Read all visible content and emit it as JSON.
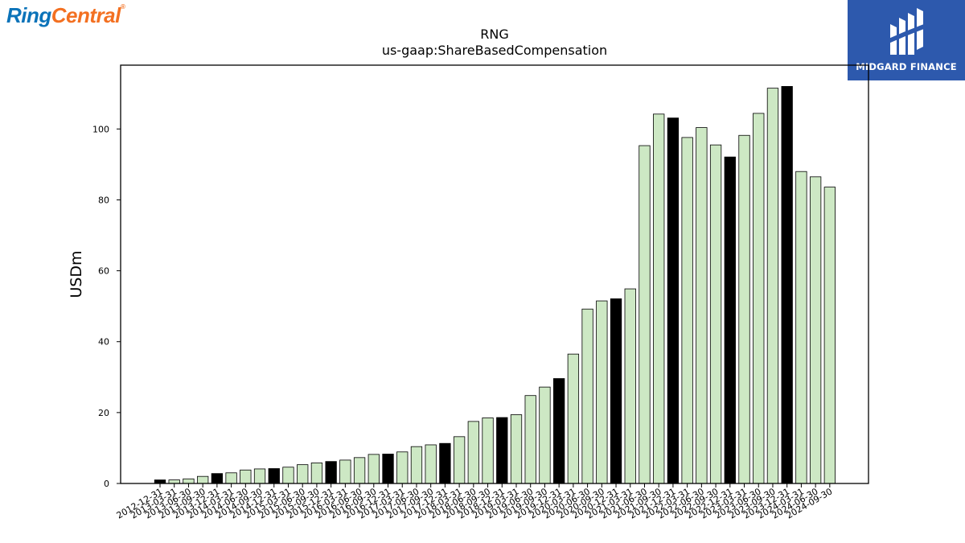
{
  "brand": {
    "left_part1": "Ring",
    "left_part2": "Central",
    "left_reg": "®",
    "right_text": "MIDGARD FINANCE",
    "right_bg": "#2d59ad"
  },
  "colors": {
    "quarter_fill": "#cde8c4",
    "annual_fill": "#000000",
    "edge": "#000000"
  },
  "chart_data": {
    "type": "bar",
    "title": "RNG",
    "subtitle": "us-gaap:ShareBasedCompensation",
    "xlabel": "",
    "ylabel": "USDm",
    "ylim": [
      0,
      118
    ],
    "yticks": [
      0,
      20,
      40,
      60,
      80,
      100
    ],
    "grid": false,
    "categories": [
      "2012-12-31",
      "2013-03-31",
      "2013-06-30",
      "2013-09-30",
      "2013-12-31",
      "2014-03-31",
      "2014-06-30",
      "2014-09-30",
      "2014-12-31",
      "2015-03-31",
      "2015-06-30",
      "2015-09-30",
      "2015-12-31",
      "2016-03-31",
      "2016-06-30",
      "2016-09-30",
      "2016-12-31",
      "2017-03-31",
      "2017-06-30",
      "2017-09-30",
      "2017-12-31",
      "2018-03-31",
      "2018-06-30",
      "2018-09-30",
      "2018-12-31",
      "2019-03-31",
      "2019-06-30",
      "2019-09-30",
      "2019-12-31",
      "2020-03-31",
      "2020-06-30",
      "2020-09-30",
      "2020-12-31",
      "2021-03-31",
      "2021-06-30",
      "2021-09-30",
      "2021-12-31",
      "2022-03-31",
      "2022-06-30",
      "2022-09-30",
      "2022-12-31",
      "2023-03-31",
      "2023-06-30",
      "2023-09-30",
      "2023-12-31",
      "2024-03-31",
      "2024-06-30",
      "2024-09-30"
    ],
    "values": [
      1.0,
      1.0,
      1.3,
      2.0,
      2.8,
      3.0,
      3.8,
      4.1,
      4.2,
      4.6,
      5.3,
      5.8,
      6.2,
      6.6,
      7.3,
      8.2,
      8.3,
      8.9,
      10.4,
      10.9,
      11.3,
      13.2,
      17.5,
      18.5,
      18.6,
      19.4,
      24.8,
      27.2,
      29.6,
      36.5,
      49.2,
      51.5,
      52.1,
      54.9,
      95.3,
      104.2,
      103.1,
      97.6,
      100.4,
      95.5,
      92.1,
      98.2,
      104.4,
      111.5,
      112.0,
      88.0,
      86.5,
      83.6
    ],
    "annual_dates": [
      "2012-12-31",
      "2013-12-31",
      "2014-12-31",
      "2015-12-31",
      "2016-12-31",
      "2017-12-31",
      "2018-12-31",
      "2019-12-31",
      "2020-12-31",
      "2021-12-31",
      "2022-12-31",
      "2023-12-31"
    ]
  }
}
